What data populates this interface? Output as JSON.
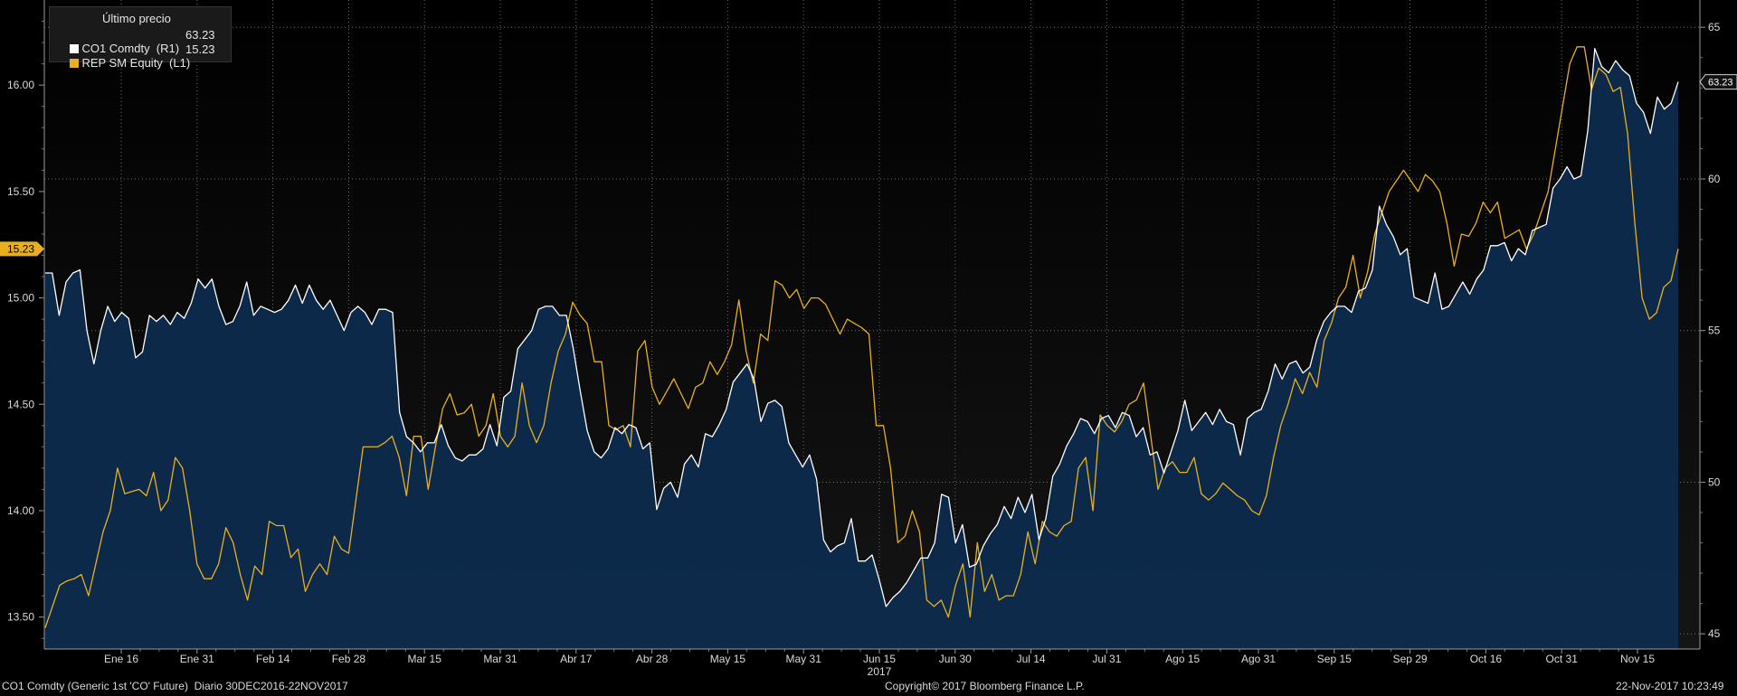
{
  "legend": {
    "title": "Último precio",
    "items": [
      {
        "label": "CO1 Comdty  (R1)",
        "value": "63.23",
        "color": "#ffffff"
      },
      {
        "label": "REP SM Equity  (L1)",
        "value": "15.23",
        "color": "#e8b01e"
      }
    ]
  },
  "footer": {
    "left": "CO1 Comdty (Generic 1st 'CO' Future)  Diario 30DEC2016-22NOV2017",
    "center": "Copyright© 2017 Bloomberg Finance L.P.",
    "right": "22-Nov-2017 10:23:49"
  },
  "chart_data": {
    "type": "line",
    "x_tick_labels": [
      "Ene 16",
      "Ene 31",
      "Feb 14",
      "Feb 28",
      "Mar 15",
      "Mar 31",
      "Abr 17",
      "Abr 28",
      "May 15",
      "May 31",
      "Jun 15",
      "Jun 30",
      "Jul 14",
      "Jul 31",
      "Ago 15",
      "Ago 31",
      "Sep 15",
      "Sep 29",
      "Oct 16",
      "Oct 31",
      "Nov 15"
    ],
    "x_year_label": "2017",
    "x_year_under": "Jun 15",
    "y_left": {
      "ticks": [
        "13.50",
        "14.00",
        "14.50",
        "15.00",
        "15.50",
        "16.00"
      ],
      "range": [
        13.35,
        16.4
      ]
    },
    "y_right": {
      "ticks": [
        "45",
        "50",
        "55",
        "60",
        "65"
      ],
      "range": [
        44.5,
        65.9
      ]
    },
    "last_value_tags": {
      "left": "15.23",
      "right": "63.23"
    },
    "series": [
      {
        "name": "CO1 Comdty  (R1)",
        "axis": "right",
        "color": "#ffffff",
        "fill": "#0d2b4d",
        "values": [
          56.9,
          56.9,
          55.5,
          56.6,
          56.9,
          57.0,
          55.0,
          53.9,
          55.0,
          55.8,
          55.3,
          55.6,
          55.4,
          54.1,
          54.3,
          55.5,
          55.3,
          55.5,
          55.2,
          55.6,
          55.4,
          55.9,
          56.7,
          56.4,
          56.7,
          55.8,
          55.2,
          55.3,
          55.8,
          56.6,
          55.5,
          55.8,
          55.7,
          55.6,
          55.7,
          56.0,
          56.5,
          55.9,
          56.5,
          56.0,
          55.7,
          56.0,
          55.5,
          55.0,
          55.6,
          55.8,
          55.6,
          55.2,
          55.7,
          55.7,
          55.6,
          52.3,
          51.5,
          51.3,
          51.0,
          51.3,
          51.3,
          51.9,
          51.2,
          50.8,
          50.7,
          50.9,
          50.9,
          51.1,
          51.9,
          51.2,
          52.8,
          53.0,
          54.4,
          54.7,
          55.0,
          55.7,
          55.8,
          55.8,
          55.5,
          55.5,
          54.4,
          53.0,
          51.7,
          51.0,
          50.8,
          51.1,
          51.8,
          51.6,
          51.9,
          51.8,
          51.1,
          51.3,
          49.1,
          49.8,
          50.0,
          49.5,
          50.6,
          50.9,
          50.5,
          51.6,
          51.5,
          51.9,
          52.4,
          53.3,
          53.6,
          53.9,
          53.4,
          52.0,
          52.6,
          52.7,
          52.5,
          51.3,
          50.9,
          50.5,
          50.9,
          50.1,
          48.1,
          47.7,
          47.9,
          48.0,
          48.8,
          47.4,
          47.4,
          47.6,
          46.8,
          45.9,
          46.2,
          46.4,
          46.7,
          47.1,
          47.5,
          47.5,
          48.0,
          49.6,
          49.5,
          48.0,
          48.6,
          47.2,
          47.3,
          47.9,
          48.3,
          48.6,
          49.2,
          48.8,
          49.5,
          49.0,
          49.6,
          48.1,
          48.8,
          50.2,
          50.6,
          51.2,
          51.6,
          52.1,
          52.0,
          51.6,
          52.1,
          52.2,
          51.8,
          52.3,
          52.2,
          51.5,
          51.8,
          50.9,
          51.0,
          50.3,
          51.0,
          51.7,
          52.7,
          51.7,
          52.0,
          52.3,
          51.9,
          52.4,
          52.0,
          51.9,
          50.9,
          52.1,
          52.3,
          52.4,
          53.0,
          53.9,
          53.4,
          53.9,
          54.0,
          53.6,
          53.8,
          54.7,
          55.3,
          55.6,
          55.8,
          55.8,
          55.6,
          56.3,
          56.4,
          57.0,
          59.1,
          58.5,
          58.1,
          57.5,
          57.7,
          56.1,
          56.0,
          55.9,
          56.9,
          55.7,
          55.8,
          56.2,
          56.6,
          56.2,
          56.7,
          57.0,
          57.8,
          57.8,
          57.9,
          57.3,
          57.7,
          57.5,
          58.3,
          58.4,
          58.5,
          59.7,
          60.0,
          60.4,
          60.0,
          60.1,
          61.6,
          64.3,
          63.7,
          63.5,
          63.9,
          63.6,
          63.4,
          62.5,
          62.2,
          61.5,
          62.7,
          62.3,
          62.5,
          63.2
        ]
      },
      {
        "name": "REP SM Equity  (L1)",
        "axis": "left",
        "color": "#e8b01e",
        "values": [
          13.45,
          13.55,
          13.65,
          13.67,
          13.68,
          13.7,
          13.6,
          13.75,
          13.9,
          14.0,
          14.2,
          14.08,
          14.09,
          14.1,
          14.07,
          14.18,
          14.0,
          14.05,
          14.25,
          14.2,
          14.0,
          13.75,
          13.68,
          13.68,
          13.75,
          13.92,
          13.85,
          13.7,
          13.58,
          13.74,
          13.7,
          13.95,
          13.93,
          13.93,
          13.78,
          13.82,
          13.62,
          13.7,
          13.75,
          13.7,
          13.88,
          13.82,
          13.8,
          14.05,
          14.3,
          14.3,
          14.3,
          14.32,
          14.35,
          14.25,
          14.07,
          14.35,
          14.35,
          14.1,
          14.3,
          14.48,
          14.55,
          14.45,
          14.46,
          14.5,
          14.35,
          14.4,
          14.55,
          14.35,
          14.3,
          14.35,
          14.6,
          14.4,
          14.32,
          14.4,
          14.6,
          14.75,
          14.83,
          14.98,
          14.92,
          14.88,
          14.7,
          14.7,
          14.4,
          14.38,
          14.4,
          14.3,
          14.75,
          14.8,
          14.58,
          14.5,
          14.56,
          14.62,
          14.55,
          14.48,
          14.58,
          14.6,
          14.7,
          14.64,
          14.7,
          14.78,
          14.99,
          14.75,
          14.6,
          14.83,
          14.8,
          15.08,
          15.06,
          15.0,
          15.04,
          14.95,
          15.0,
          15.0,
          14.97,
          14.9,
          14.83,
          14.9,
          14.88,
          14.86,
          14.83,
          14.4,
          14.4,
          14.2,
          13.85,
          13.88,
          14.0,
          13.9,
          13.58,
          13.55,
          13.58,
          13.5,
          13.65,
          13.75,
          13.5,
          13.85,
          13.62,
          13.7,
          13.58,
          13.6,
          13.6,
          13.7,
          13.9,
          13.75,
          13.95,
          13.9,
          13.88,
          13.93,
          13.95,
          14.2,
          14.25,
          14.0,
          14.45,
          14.4,
          14.37,
          14.42,
          14.5,
          14.52,
          14.6,
          14.35,
          14.1,
          14.2,
          14.23,
          14.18,
          14.18,
          14.25,
          14.08,
          14.05,
          14.08,
          14.13,
          14.1,
          14.07,
          14.05,
          14.0,
          13.98,
          14.07,
          14.25,
          14.4,
          14.5,
          14.62,
          14.55,
          14.65,
          14.58,
          14.8,
          14.88,
          15.0,
          15.05,
          15.2,
          15.0,
          15.12,
          15.3,
          15.4,
          15.5,
          15.55,
          15.6,
          15.55,
          15.5,
          15.58,
          15.55,
          15.5,
          15.35,
          15.15,
          15.3,
          15.29,
          15.35,
          15.45,
          15.4,
          15.45,
          15.28,
          15.3,
          15.32,
          15.23,
          15.3,
          15.4,
          15.5,
          15.7,
          15.9,
          16.1,
          16.18,
          16.18,
          15.98,
          16.08,
          16.05,
          15.97,
          15.99,
          15.77,
          15.35,
          15.0,
          14.9,
          14.93,
          15.05,
          15.08,
          15.23
        ]
      }
    ]
  }
}
